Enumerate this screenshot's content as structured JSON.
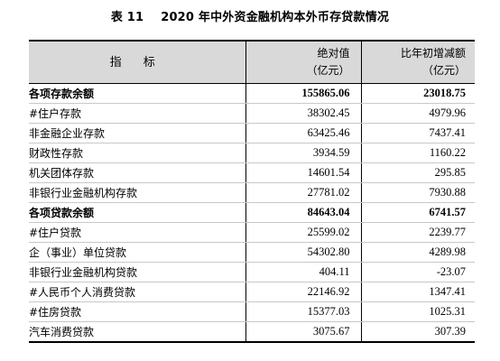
{
  "title": "表 11    2020 年中外资金融机构本外币存贷款情况",
  "header": {
    "indicator": "指 标",
    "col1_line1": "绝对值",
    "col1_line2": "（亿元）",
    "col2_line1": "比年初增减额",
    "col2_line2": "（亿元）"
  },
  "rows": [
    {
      "label": "各项存款余额",
      "value": "155865.06",
      "change": "23018.75"
    },
    {
      "label": "#住户存款",
      "value": "38302.45",
      "change": "4979.96"
    },
    {
      "label": "非金融企业存款",
      "value": "63425.46",
      "change": "7437.41"
    },
    {
      "label": "财政性存款",
      "value": "3934.59",
      "change": "1160.22"
    },
    {
      "label": "机关团体存款",
      "value": "14601.54",
      "change": "295.85"
    },
    {
      "label": "非银行业金融机构存款",
      "value": "27781.02",
      "change": "7930.88"
    },
    {
      "label": "各项贷款余额",
      "value": "84643.04",
      "change": "6741.57"
    },
    {
      "label": "#住户贷款",
      "value": "25599.02",
      "change": "2239.77"
    },
    {
      "label": "企（事业）单位贷款",
      "value": "54302.80",
      "change": "4289.98"
    },
    {
      "label": "非银行业金融机构贷款",
      "value": "404.11",
      "change": "-23.07"
    },
    {
      "label": "#人民币个人消费贷款",
      "value": "22146.92",
      "change": "1347.41"
    },
    {
      "label": "#住房贷款",
      "value": "15377.03",
      "change": "1025.31"
    },
    {
      "label": "汽车消费贷款",
      "value": "3075.67",
      "change": "307.39"
    }
  ]
}
